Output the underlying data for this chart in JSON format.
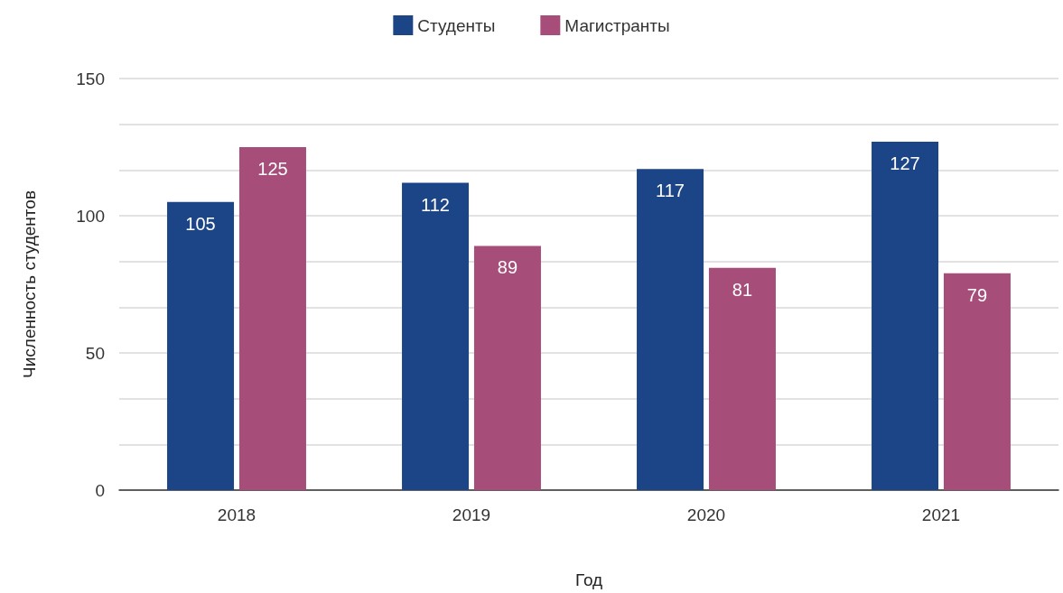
{
  "chart_data": {
    "type": "bar",
    "xlabel": "Год",
    "ylabel": "Численность студентов",
    "categories": [
      "2018",
      "2019",
      "2020",
      "2021"
    ],
    "series": [
      {
        "name": "Студенты",
        "color": "#1c4587",
        "values": [
          105,
          112,
          117,
          127
        ]
      },
      {
        "name": "Магистранты",
        "color": "#a64d79",
        "values": [
          125,
          89,
          81,
          79
        ]
      }
    ],
    "ylim": [
      0,
      150
    ],
    "yticks": [
      0,
      {
        "value": 16.67,
        "label": null
      },
      {
        "value": 33.33,
        "label": null
      },
      50,
      {
        "value": 66.67,
        "label": null
      },
      {
        "value": 83.33,
        "label": null
      },
      100,
      {
        "value": 116.67,
        "label": null
      },
      {
        "value": 133.33,
        "label": null
      },
      150
    ],
    "grid": "y",
    "legend": "top",
    "data_labels": true
  }
}
